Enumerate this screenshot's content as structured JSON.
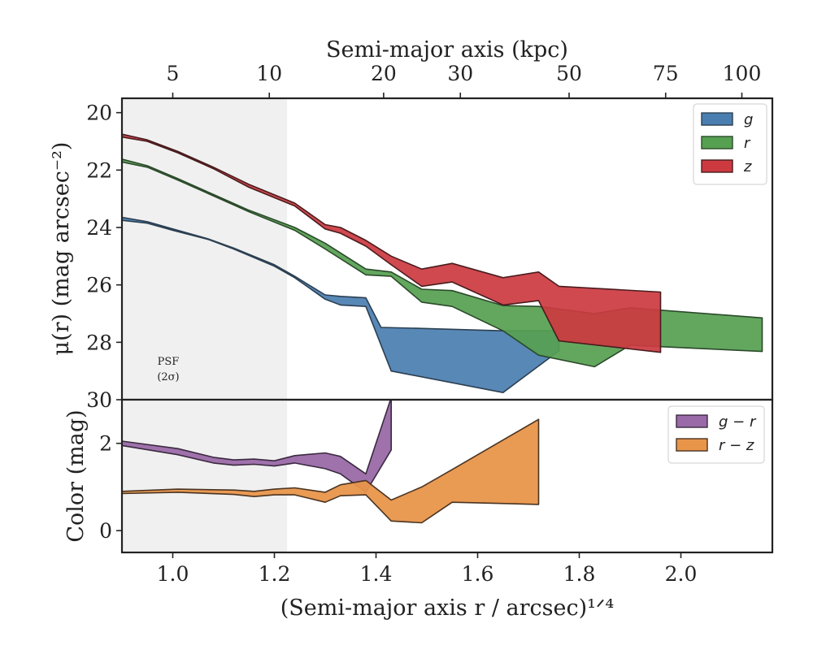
{
  "chart_data": [
    {
      "type": "area",
      "ylabel": "μ(r) (mag arcsec⁻²)",
      "top_xlabel": "Semi-major axis (kpc)",
      "xlim": [
        0.9,
        2.18
      ],
      "ylim": [
        30,
        19.5
      ],
      "y_inverted": true,
      "yticks": [
        20,
        22,
        24,
        26,
        28,
        30
      ],
      "top_ticks": [
        {
          "label": "5",
          "x": 1.0
        },
        {
          "label": "10",
          "x": 1.19
        },
        {
          "label": "20",
          "x": 1.415
        },
        {
          "label": "30",
          "x": 1.566
        },
        {
          "label": "50",
          "x": 1.78
        },
        {
          "label": "75",
          "x": 1.97
        },
        {
          "label": "100",
          "x": 2.12
        }
      ],
      "psf_region": {
        "x_max": 1.225,
        "label_line1": "PSF",
        "label_line2": "(2σ)"
      },
      "legend_position": "upper right",
      "series": [
        {
          "name": "g",
          "color": "#4a7eb0",
          "edge": "#2b3f52",
          "upper": [
            [
              0.9,
              23.65
            ],
            [
              0.95,
              23.8
            ],
            [
              1.0,
              24.05
            ],
            [
              1.07,
              24.4
            ],
            [
              1.12,
              24.72
            ],
            [
              1.2,
              25.3
            ],
            [
              1.24,
              25.7
            ],
            [
              1.3,
              26.35
            ],
            [
              1.33,
              26.4
            ],
            [
              1.38,
              26.45
            ],
            [
              1.41,
              27.48
            ],
            [
              1.5,
              27.52
            ],
            [
              1.65,
              27.6
            ],
            [
              1.76,
              27.6
            ]
          ],
          "lower": [
            [
              0.9,
              23.75
            ],
            [
              0.95,
              23.85
            ],
            [
              1.0,
              24.1
            ],
            [
              1.07,
              24.42
            ],
            [
              1.12,
              24.75
            ],
            [
              1.2,
              25.35
            ],
            [
              1.24,
              25.75
            ],
            [
              1.3,
              26.5
            ],
            [
              1.33,
              26.7
            ],
            [
              1.38,
              26.75
            ],
            [
              1.43,
              29.0
            ],
            [
              1.65,
              29.75
            ],
            [
              1.76,
              28.3
            ]
          ]
        },
        {
          "name": "r",
          "color": "#56a051",
          "edge": "#2b4a2a",
          "upper": [
            [
              0.9,
              21.62
            ],
            [
              0.95,
              21.85
            ],
            [
              1.01,
              22.3
            ],
            [
              1.08,
              22.85
            ],
            [
              1.15,
              23.4
            ],
            [
              1.24,
              24.0
            ],
            [
              1.3,
              24.55
            ],
            [
              1.38,
              25.45
            ],
            [
              1.43,
              25.55
            ],
            [
              1.49,
              26.15
            ],
            [
              1.55,
              26.2
            ],
            [
              1.65,
              26.72
            ],
            [
              1.72,
              26.75
            ],
            [
              1.83,
              27.0
            ],
            [
              1.9,
              26.8
            ],
            [
              2.16,
              27.15
            ]
          ],
          "lower": [
            [
              0.9,
              21.72
            ],
            [
              0.95,
              21.9
            ],
            [
              1.01,
              22.35
            ],
            [
              1.08,
              22.9
            ],
            [
              1.15,
              23.45
            ],
            [
              1.24,
              24.1
            ],
            [
              1.3,
              24.75
            ],
            [
              1.38,
              25.65
            ],
            [
              1.43,
              25.7
            ],
            [
              1.49,
              26.6
            ],
            [
              1.55,
              26.75
            ],
            [
              1.65,
              27.6
            ],
            [
              1.72,
              28.45
            ],
            [
              1.83,
              28.85
            ],
            [
              1.9,
              28.1
            ],
            [
              2.16,
              28.32
            ]
          ]
        },
        {
          "name": "z",
          "color": "#cc3a40",
          "edge": "#4a1c1e",
          "upper": [
            [
              0.9,
              20.75
            ],
            [
              0.95,
              20.95
            ],
            [
              1.01,
              21.35
            ],
            [
              1.08,
              21.9
            ],
            [
              1.15,
              22.5
            ],
            [
              1.24,
              23.15
            ],
            [
              1.3,
              23.9
            ],
            [
              1.33,
              24.0
            ],
            [
              1.38,
              24.45
            ],
            [
              1.43,
              25.0
            ],
            [
              1.49,
              25.45
            ],
            [
              1.55,
              25.25
            ],
            [
              1.65,
              25.75
            ],
            [
              1.72,
              25.55
            ],
            [
              1.76,
              26.05
            ],
            [
              1.96,
              26.25
            ]
          ],
          "lower": [
            [
              0.9,
              20.85
            ],
            [
              0.95,
              21.0
            ],
            [
              1.01,
              21.4
            ],
            [
              1.08,
              21.95
            ],
            [
              1.15,
              22.6
            ],
            [
              1.24,
              23.25
            ],
            [
              1.3,
              24.05
            ],
            [
              1.33,
              24.2
            ],
            [
              1.38,
              24.65
            ],
            [
              1.43,
              25.3
            ],
            [
              1.49,
              26.05
            ],
            [
              1.55,
              25.9
            ],
            [
              1.65,
              26.7
            ],
            [
              1.72,
              26.55
            ],
            [
              1.76,
              27.95
            ],
            [
              1.96,
              28.35
            ]
          ]
        }
      ]
    },
    {
      "type": "area",
      "xlabel": "(Semi-major axis r / arcsec)¹ᐟ⁴",
      "ylabel": "Color (mag)",
      "xlim": [
        0.9,
        2.18
      ],
      "ylim": [
        -0.5,
        3.0
      ],
      "xticks": [
        "1.0",
        "1.2",
        "1.4",
        "1.6",
        "1.8",
        "2.0"
      ],
      "xtick_values": [
        1.0,
        1.2,
        1.4,
        1.6,
        1.8,
        2.0
      ],
      "yticks": [
        0,
        2
      ],
      "legend_position": "upper right",
      "series": [
        {
          "name": "g − r",
          "color": "#9a6aa8",
          "edge": "#3b2a40",
          "upper": [
            [
              0.9,
              2.05
            ],
            [
              1.01,
              1.88
            ],
            [
              1.08,
              1.68
            ],
            [
              1.12,
              1.62
            ],
            [
              1.16,
              1.64
            ],
            [
              1.2,
              1.6
            ],
            [
              1.24,
              1.72
            ],
            [
              1.3,
              1.78
            ],
            [
              1.33,
              1.7
            ],
            [
              1.38,
              1.3
            ],
            [
              1.43,
              3.05
            ]
          ],
          "lower": [
            [
              0.9,
              1.95
            ],
            [
              1.01,
              1.74
            ],
            [
              1.08,
              1.55
            ],
            [
              1.12,
              1.5
            ],
            [
              1.16,
              1.52
            ],
            [
              1.2,
              1.48
            ],
            [
              1.24,
              1.55
            ],
            [
              1.3,
              1.42
            ],
            [
              1.33,
              1.3
            ],
            [
              1.38,
              0.88
            ],
            [
              1.43,
              1.85
            ]
          ]
        },
        {
          "name": "r − z",
          "color": "#e8954a",
          "edge": "#4a3422",
          "upper": [
            [
              0.9,
              0.9
            ],
            [
              1.01,
              0.95
            ],
            [
              1.12,
              0.93
            ],
            [
              1.16,
              0.9
            ],
            [
              1.2,
              0.95
            ],
            [
              1.24,
              0.98
            ],
            [
              1.3,
              0.88
            ],
            [
              1.33,
              1.05
            ],
            [
              1.38,
              1.15
            ],
            [
              1.43,
              0.7
            ],
            [
              1.49,
              1.0
            ],
            [
              1.55,
              1.4
            ],
            [
              1.72,
              2.55
            ]
          ],
          "lower": [
            [
              0.9,
              0.85
            ],
            [
              1.01,
              0.88
            ],
            [
              1.12,
              0.83
            ],
            [
              1.16,
              0.78
            ],
            [
              1.2,
              0.82
            ],
            [
              1.24,
              0.82
            ],
            [
              1.3,
              0.65
            ],
            [
              1.33,
              0.8
            ],
            [
              1.38,
              0.82
            ],
            [
              1.43,
              0.22
            ],
            [
              1.49,
              0.18
            ],
            [
              1.55,
              0.65
            ],
            [
              1.72,
              0.6
            ]
          ]
        }
      ]
    }
  ]
}
